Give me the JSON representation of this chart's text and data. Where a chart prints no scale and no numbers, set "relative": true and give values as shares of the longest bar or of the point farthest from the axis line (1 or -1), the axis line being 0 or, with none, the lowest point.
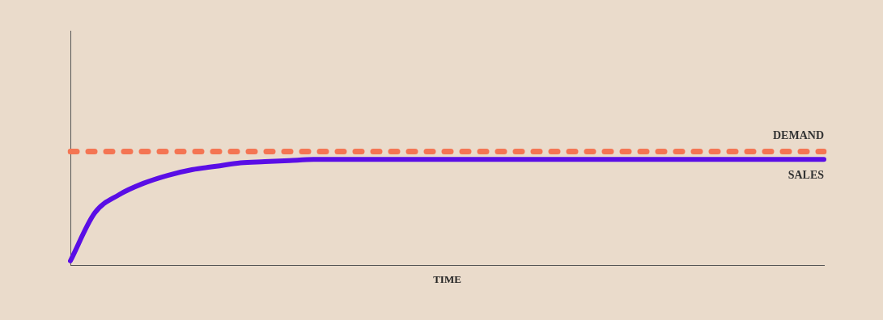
{
  "chart_data": {
    "type": "line",
    "relative": true,
    "xlabel": "TIME",
    "categories": [
      null,
      null,
      null,
      null,
      null,
      null,
      null,
      null,
      null,
      null,
      null,
      null,
      null,
      null,
      null,
      null,
      null,
      null,
      null,
      null,
      null,
      null,
      null,
      null,
      null,
      null,
      null,
      null,
      null,
      null,
      null,
      null
    ],
    "series": [
      {
        "name": "DEMAND",
        "color": "#f47553",
        "line_style": "dotted",
        "values": [
          1,
          1,
          1,
          1,
          1,
          1,
          1,
          1,
          1,
          1,
          1,
          1,
          1,
          1,
          1,
          1,
          1,
          1,
          1,
          1,
          1,
          1,
          1,
          1,
          1,
          1,
          1,
          1,
          1,
          1,
          1,
          1
        ]
      },
      {
        "name": "SALES",
        "color": "#5a0ee6",
        "line_style": "solid",
        "values": [
          0.04,
          0.46,
          0.62,
          0.72,
          0.79,
          0.84,
          0.87,
          0.9,
          0.91,
          0.92,
          0.93,
          0.93,
          0.93,
          0.93,
          0.93,
          0.93,
          0.93,
          0.93,
          0.93,
          0.93,
          0.93,
          0.93,
          0.93,
          0.93,
          0.93,
          0.93,
          0.93,
          0.93,
          0.93,
          0.93,
          0.93,
          0.93
        ]
      }
    ],
    "grid": false,
    "legend": false,
    "marker": "none",
    "tick_labels": false
  }
}
